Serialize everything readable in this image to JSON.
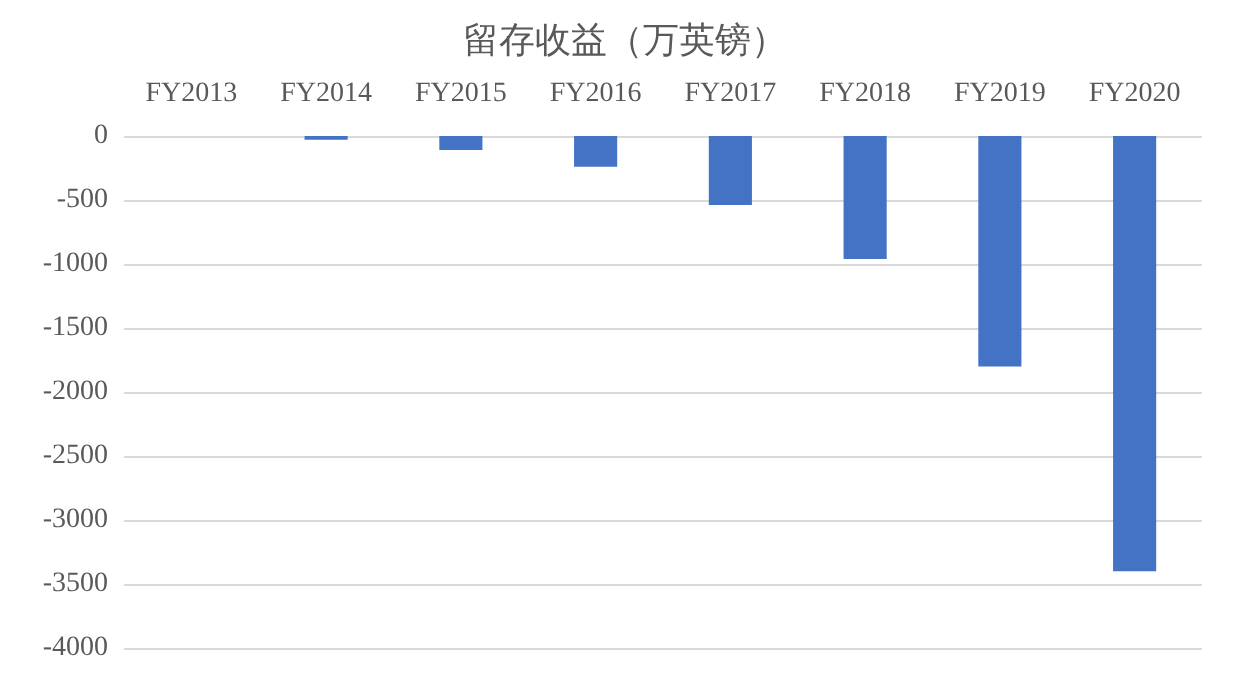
{
  "chart_data": {
    "type": "bar",
    "title": "留存收益（万英镑）",
    "categories": [
      "FY2013",
      "FY2014",
      "FY2015",
      "FY2016",
      "FY2017",
      "FY2018",
      "FY2019",
      "FY2020"
    ],
    "values": [
      0,
      -30,
      -110,
      -240,
      -540,
      -960,
      -1800,
      -3400
    ],
    "color": "#4472c4",
    "ylim": [
      -4000,
      0
    ],
    "yticks": [
      -4000,
      -3500,
      -3000,
      -2500,
      -2000,
      -1500,
      -1000,
      -500,
      0
    ],
    "grid": "y"
  }
}
